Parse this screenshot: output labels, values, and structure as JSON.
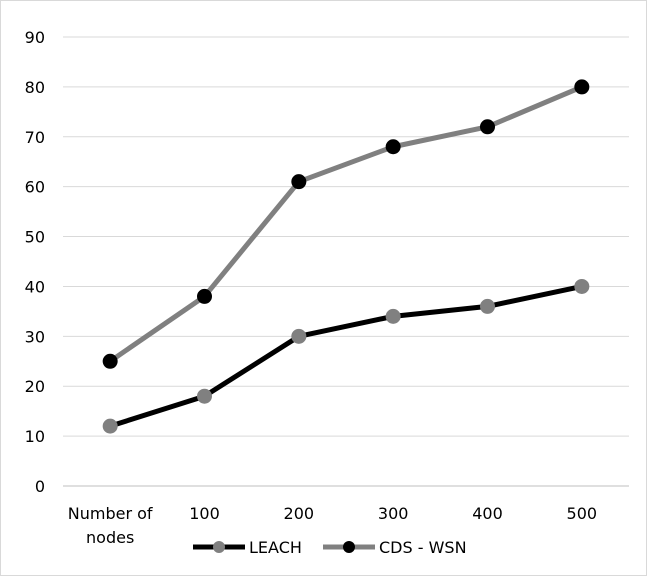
{
  "chart_data": {
    "type": "line",
    "categories": [
      "Number of nodes",
      "100",
      "200",
      "300",
      "400",
      "500"
    ],
    "series": [
      {
        "name": "LEACH",
        "values": [
          12,
          18,
          30,
          34,
          36,
          40
        ],
        "line_color": "#000000",
        "marker_color": "#808080"
      },
      {
        "name": "CDS - WSN",
        "values": [
          25,
          38,
          61,
          68,
          72,
          80
        ],
        "line_color": "#808080",
        "marker_color": "#000000"
      }
    ],
    "ylim": [
      0,
      90
    ],
    "yticks": [
      0,
      10,
      20,
      30,
      40,
      50,
      60,
      70,
      80,
      90
    ],
    "grid": true,
    "legend_position": "bottom"
  }
}
